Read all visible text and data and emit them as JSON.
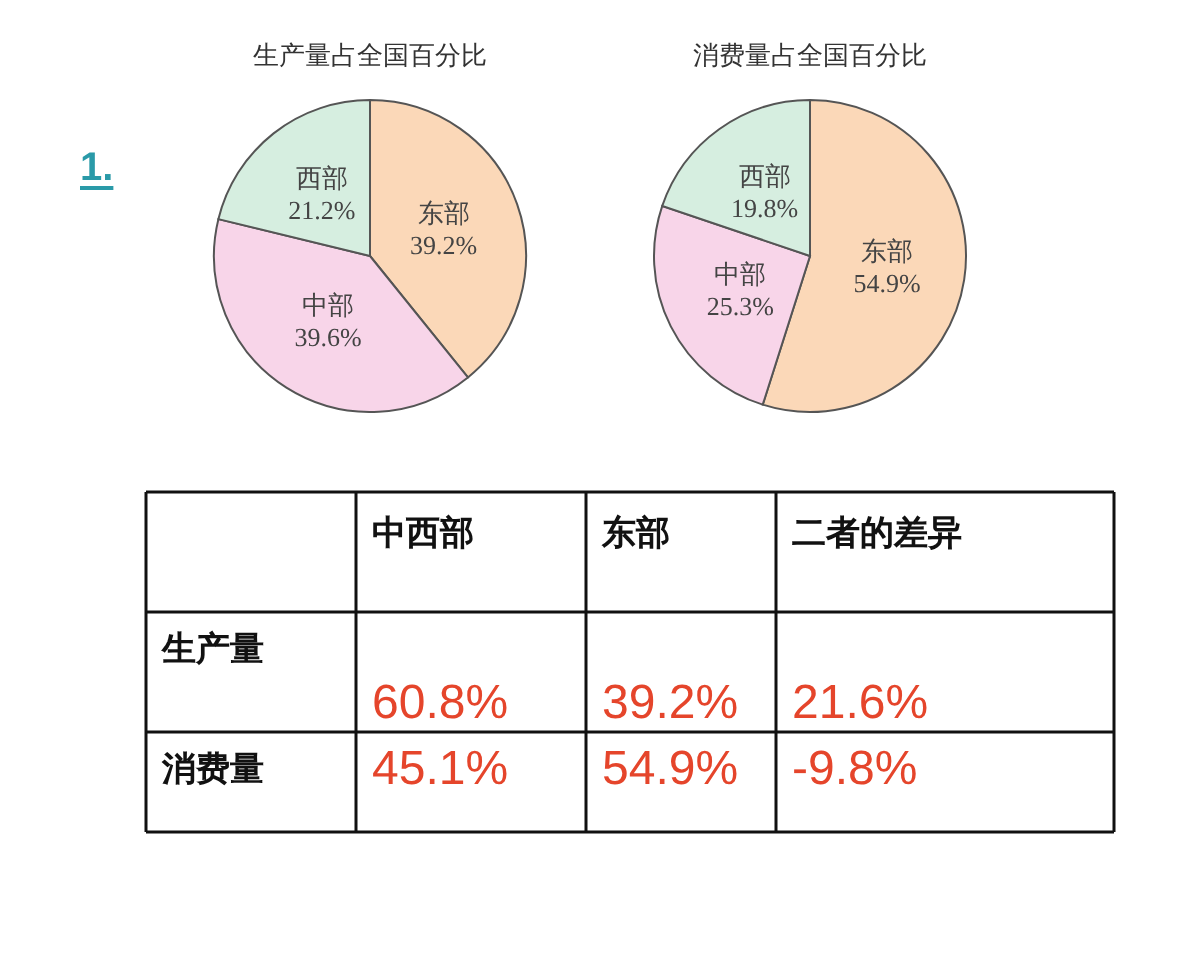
{
  "chart_data": [
    {
      "type": "pie",
      "title": "生产量占全国百分比",
      "annotations": [
        "1."
      ],
      "categories": [
        "东部",
        "中部",
        "西部"
      ],
      "values": [
        39.2,
        39.6,
        21.2
      ],
      "value_labels": [
        "39.2%",
        "39.6%",
        "21.2%"
      ],
      "colors": [
        "#fbd8b8",
        "#f8d5e9",
        "#d6eee0"
      ]
    },
    {
      "type": "pie",
      "title": "消费量占全国百分比",
      "categories": [
        "东部",
        "中部",
        "西部"
      ],
      "values": [
        54.9,
        25.3,
        19.8
      ],
      "value_labels": [
        "54.9%",
        "25.3%",
        "19.8%"
      ],
      "colors": [
        "#fbd8b8",
        "#f8d5e9",
        "#d6eee0"
      ]
    },
    {
      "type": "other",
      "categories": [
        "中西部",
        "东部",
        "二者的差异"
      ],
      "y_categories": [
        "生产量",
        "消费量"
      ],
      "cell_labels": [
        [
          "60.8%",
          "39.2%",
          "21.6%"
        ],
        [
          "45.1%",
          "54.9%",
          "-9.8%"
        ]
      ]
    }
  ]
}
